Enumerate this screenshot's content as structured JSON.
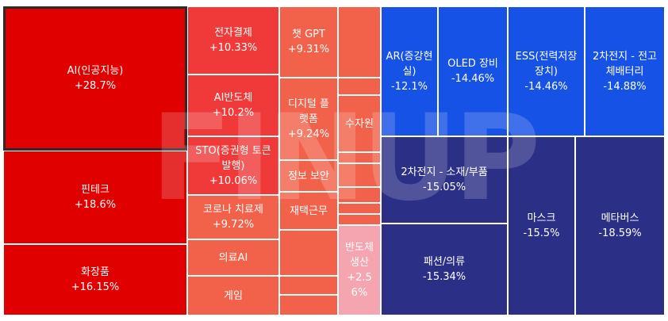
{
  "chart_data": {
    "type": "treemap",
    "colors": {
      "strong_up": "#e00000",
      "mid_up": "#f03a3a",
      "light_up": "#f2624a",
      "pale_up": "#f4a5b0",
      "down_blue": "#1652e6",
      "down_navy": "#2c2f86"
    },
    "tiles": [
      {
        "name": "AI(인공지능)",
        "change": "+28.7%",
        "color": "strong_up",
        "selected": true
      },
      {
        "name": "핀테크",
        "change": "+18.6%",
        "color": "strong_up"
      },
      {
        "name": "화장품",
        "change": "+16.15%",
        "color": "strong_up"
      },
      {
        "name": "전자결제",
        "change": "+10.33%",
        "color": "mid_up"
      },
      {
        "name": "AI반도체",
        "change": "+10.2%",
        "color": "mid_up"
      },
      {
        "name": "STO(증권형 토큰 발행)",
        "change": "+10.06%",
        "color": "mid_up"
      },
      {
        "name": "코로나 치료제",
        "change": "+9.72%",
        "color": "light_up"
      },
      {
        "name": "의료AI",
        "change": "",
        "color": "light_up"
      },
      {
        "name": "게임",
        "change": "",
        "color": "light_up"
      },
      {
        "name": "챗 GPT",
        "change": "+9.31%",
        "color": "light_up"
      },
      {
        "name": "디지털 플랫폼",
        "change": "+9.24%",
        "color": "light_up"
      },
      {
        "name": "정보 보안",
        "change": "",
        "color": "light_up"
      },
      {
        "name": "재택근무",
        "change": "",
        "color": "light_up"
      },
      {
        "name": "",
        "change": "",
        "color": "light_up"
      },
      {
        "name": "",
        "change": "",
        "color": "light_up"
      },
      {
        "name": "",
        "change": "",
        "color": "light_up"
      },
      {
        "name": "",
        "change": "",
        "color": "light_up"
      },
      {
        "name": "",
        "change": "",
        "color": "light_up"
      },
      {
        "name": "수자원",
        "change": "",
        "color": "light_up"
      },
      {
        "name": "",
        "change": "",
        "color": "light_up"
      },
      {
        "name": "",
        "change": "",
        "color": "light_up"
      },
      {
        "name": "",
        "change": "",
        "color": "light_up"
      },
      {
        "name": "",
        "change": "",
        "color": "light_up"
      },
      {
        "name": "",
        "change": "",
        "color": "light_up"
      },
      {
        "name": "반도체 생산",
        "change": "+2.56%",
        "color": "pale_up"
      },
      {
        "name": "AR(증강현실)",
        "change": "-12.1%",
        "color": "down_blue"
      },
      {
        "name": "OLED 장비",
        "change": "-14.46%",
        "color": "down_blue"
      },
      {
        "name": "ESS(전력저장장치)",
        "change": "-14.46%",
        "color": "down_blue"
      },
      {
        "name": "2차전지 - 전고체배터리",
        "change": "-14.88%",
        "color": "down_blue"
      },
      {
        "name": "2차전지 - 소재/부품",
        "change": "-15.05%",
        "color": "down_navy"
      },
      {
        "name": "패션/의류",
        "change": "-15.34%",
        "color": "down_navy"
      },
      {
        "name": "마스크",
        "change": "-15.5%",
        "color": "down_navy"
      },
      {
        "name": "메타버스",
        "change": "-18.59%",
        "color": "down_navy"
      }
    ],
    "watermark": "FINUP"
  }
}
